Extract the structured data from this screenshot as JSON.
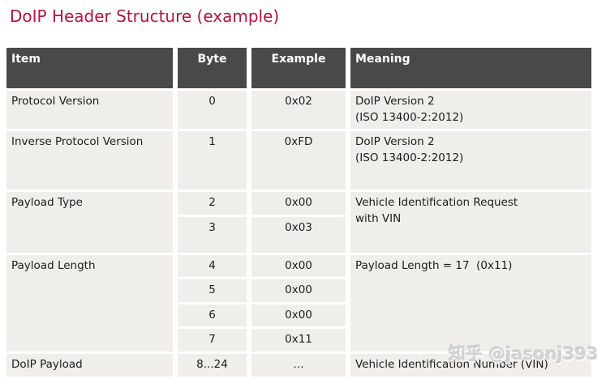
{
  "title": "DoIP Header Structure (example)",
  "watermark": "知乎 @jasonj393",
  "colors": {
    "title_accent": "#b01441",
    "header_bg": "#494947",
    "header_text": "#ffffff",
    "row_bg": "#efeeeb",
    "body_text": "#1c1c1c",
    "watermark_text": "#d2d2d2"
  },
  "table": {
    "columns": [
      "Item",
      "Byte",
      "Example",
      "Meaning"
    ],
    "groups": [
      {
        "item": "Protocol Version",
        "rows": [
          {
            "byte": "0",
            "example": "0x02"
          }
        ],
        "meaning": "DoIP Version 2\n(ISO 13400-2:2012)"
      },
      {
        "item": "Inverse Protocol Version",
        "rows": [
          {
            "byte": "1",
            "example": "0xFD"
          }
        ],
        "meaning": "DoIP Version 2\n(ISO 13400-2:2012)"
      },
      {
        "item": "Payload Type",
        "rows": [
          {
            "byte": "2",
            "example": "0x00"
          },
          {
            "byte": "3",
            "example": "0x03"
          }
        ],
        "meaning": "Vehicle Identification Request\nwith VIN"
      },
      {
        "item": "Payload Length",
        "rows": [
          {
            "byte": "4",
            "example": "0x00"
          },
          {
            "byte": "5",
            "example": "0x00"
          },
          {
            "byte": "6",
            "example": "0x00"
          },
          {
            "byte": "7",
            "example": "0x11"
          }
        ],
        "meaning": "Payload Length = 17  (0x11)"
      },
      {
        "item": "DoIP Payload",
        "rows": [
          {
            "byte": "8...24",
            "example": "…"
          }
        ],
        "meaning": "Vehicle Identification Number (VIN)"
      }
    ]
  }
}
